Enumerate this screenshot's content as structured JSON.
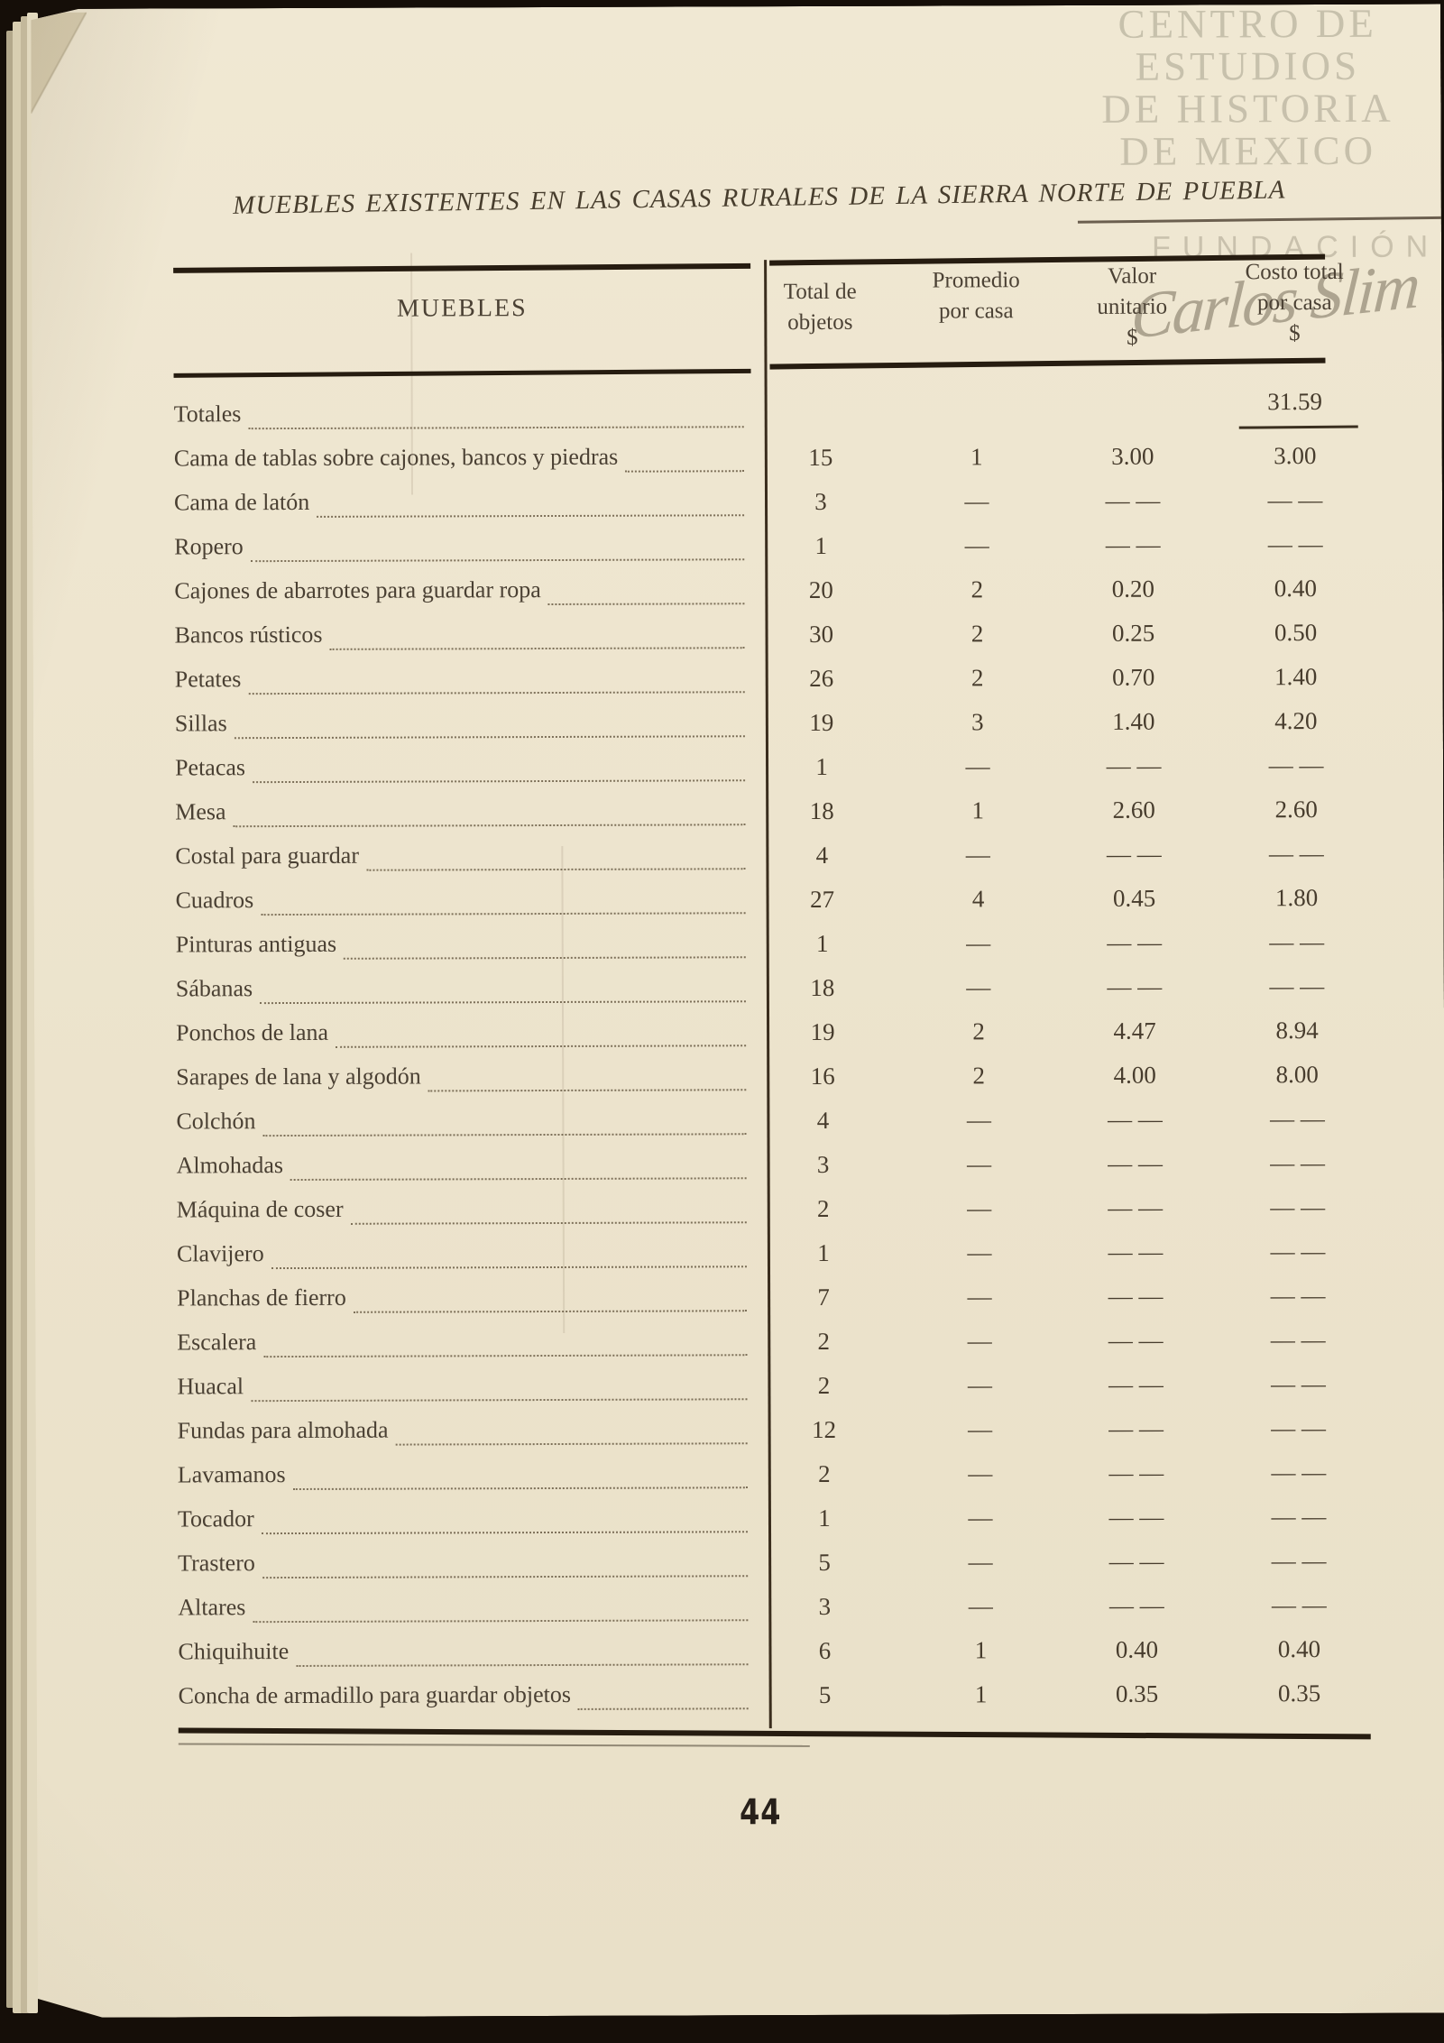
{
  "document": {
    "title": "MUEBLES EXISTENTES EN LAS CASAS RURALES DE LA SIERRA NORTE DE PUEBLA",
    "page_number": "44"
  },
  "watermark": {
    "institution_lines": [
      "CENTRO DE",
      "ESTUDIOS",
      "DE HISTORIA",
      "DE MEXICO"
    ],
    "foundation": "FUNDACIÓN",
    "signature": "Carlos Slim"
  },
  "table": {
    "header": {
      "muebles": "MUEBLES",
      "columns": [
        {
          "id": "total_objetos",
          "lines": [
            "Total de",
            "objetos"
          ]
        },
        {
          "id": "promedio_por_casa",
          "lines": [
            "Promedio",
            "por casa"
          ]
        },
        {
          "id": "valor_unitario",
          "lines": [
            "Valor",
            "unitario",
            "$"
          ]
        },
        {
          "id": "costo_total_por_casa",
          "lines": [
            "Costo total",
            "por casa",
            "$"
          ]
        }
      ]
    },
    "totals_row": {
      "label": "Totales",
      "total": "",
      "promedio": "",
      "valor": "",
      "costo": "31.59"
    },
    "rows": [
      {
        "label": "Cama de tablas sobre cajones, bancos y piedras",
        "total": "15",
        "promedio": "1",
        "valor": "3.00",
        "costo": "3.00"
      },
      {
        "label": "Cama de latón",
        "total": "3",
        "promedio": "—",
        "valor": "— —",
        "costo": "— —"
      },
      {
        "label": "Ropero",
        "total": "1",
        "promedio": "—",
        "valor": "— —",
        "costo": "— —"
      },
      {
        "label": "Cajones de abarrotes para guardar ropa",
        "total": "20",
        "promedio": "2",
        "valor": "0.20",
        "costo": "0.40"
      },
      {
        "label": "Bancos rústicos",
        "total": "30",
        "promedio": "2",
        "valor": "0.25",
        "costo": "0.50"
      },
      {
        "label": "Petates",
        "total": "26",
        "promedio": "2",
        "valor": "0.70",
        "costo": "1.40"
      },
      {
        "label": "Sillas",
        "total": "19",
        "promedio": "3",
        "valor": "1.40",
        "costo": "4.20"
      },
      {
        "label": "Petacas",
        "total": "1",
        "promedio": "—",
        "valor": "— —",
        "costo": "— —"
      },
      {
        "label": "Mesa",
        "total": "18",
        "promedio": "1",
        "valor": "2.60",
        "costo": "2.60"
      },
      {
        "label": "Costal para guardar",
        "total": "4",
        "promedio": "—",
        "valor": "— —",
        "costo": "— —"
      },
      {
        "label": "Cuadros",
        "total": "27",
        "promedio": "4",
        "valor": "0.45",
        "costo": "1.80"
      },
      {
        "label": "Pinturas antiguas",
        "total": "1",
        "promedio": "—",
        "valor": "— —",
        "costo": "— —"
      },
      {
        "label": "Sábanas",
        "total": "18",
        "promedio": "—",
        "valor": "— —",
        "costo": "— —"
      },
      {
        "label": "Ponchos de lana",
        "total": "19",
        "promedio": "2",
        "valor": "4.47",
        "costo": "8.94"
      },
      {
        "label": "Sarapes de lana y algodón",
        "total": "16",
        "promedio": "2",
        "valor": "4.00",
        "costo": "8.00"
      },
      {
        "label": "Colchón",
        "total": "4",
        "promedio": "—",
        "valor": "— —",
        "costo": "— —"
      },
      {
        "label": "Almohadas",
        "total": "3",
        "promedio": "—",
        "valor": "— —",
        "costo": "— —"
      },
      {
        "label": "Máquina de coser",
        "total": "2",
        "promedio": "—",
        "valor": "— —",
        "costo": "— —"
      },
      {
        "label": "Clavijero",
        "total": "1",
        "promedio": "—",
        "valor": "— —",
        "costo": "— —"
      },
      {
        "label": "Planchas de fierro",
        "total": "7",
        "promedio": "—",
        "valor": "— —",
        "costo": "— —"
      },
      {
        "label": "Escalera",
        "total": "2",
        "promedio": "—",
        "valor": "— —",
        "costo": "— —"
      },
      {
        "label": "Huacal",
        "total": "2",
        "promedio": "—",
        "valor": "— —",
        "costo": "— —"
      },
      {
        "label": "Fundas para almohada",
        "total": "12",
        "promedio": "—",
        "valor": "— —",
        "costo": "— —"
      },
      {
        "label": "Lavamanos",
        "total": "2",
        "promedio": "—",
        "valor": "— —",
        "costo": "— —"
      },
      {
        "label": "Tocador",
        "total": "1",
        "promedio": "—",
        "valor": "— —",
        "costo": "— —"
      },
      {
        "label": "Trastero",
        "total": "5",
        "promedio": "—",
        "valor": "— —",
        "costo": "— —"
      },
      {
        "label": "Altares",
        "total": "3",
        "promedio": "—",
        "valor": "— —",
        "costo": "— —"
      },
      {
        "label": "Chiquihuite",
        "total": "6",
        "promedio": "1",
        "valor": "0.40",
        "costo": "0.40"
      },
      {
        "label": "Concha de armadillo para guardar objetos",
        "total": "5",
        "promedio": "1",
        "valor": "0.35",
        "costo": "0.35"
      }
    ]
  }
}
